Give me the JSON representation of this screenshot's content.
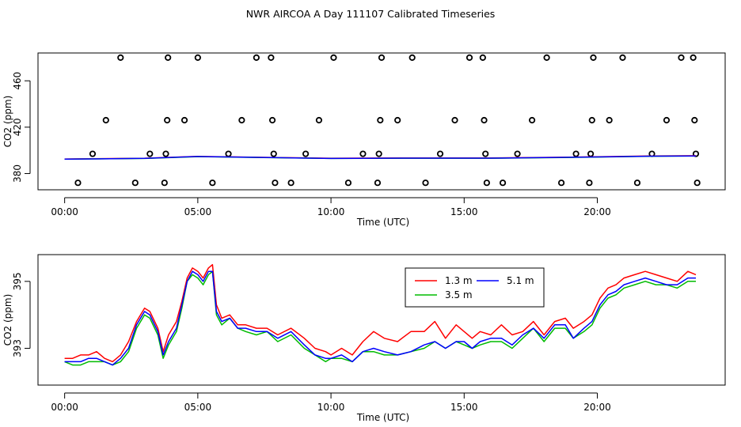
{
  "page_title": "NWR AIRCOA A  Day 111107  Calibrated Timeseries",
  "chart_data": [
    {
      "type": "scatter+line",
      "title": "",
      "xlabel": "Time (UTC)",
      "ylabel": "CO2 (ppm)",
      "xlim": [
        -1.0,
        24.8
      ],
      "ylim": [
        366,
        484
      ],
      "x_ticks": [
        {
          "v": 0,
          "label": "00:00"
        },
        {
          "v": 5,
          "label": "05:00"
        },
        {
          "v": 10,
          "label": "10:00"
        },
        {
          "v": 15,
          "label": "15:00"
        },
        {
          "v": 20,
          "label": "20:00"
        }
      ],
      "y_ticks": [
        {
          "v": 380,
          "label": "380"
        },
        {
          "v": 420,
          "label": "420"
        },
        {
          "v": 460,
          "label": "460"
        }
      ],
      "reference_points": [
        {
          "x": 0.5,
          "y": 372
        },
        {
          "x": 1.05,
          "y": 397
        },
        {
          "x": 1.55,
          "y": 426
        },
        {
          "x": 2.1,
          "y": 480
        },
        {
          "x": 2.65,
          "y": 372
        },
        {
          "x": 3.2,
          "y": 397
        },
        {
          "x": 3.75,
          "y": 372
        },
        {
          "x": 3.8,
          "y": 397
        },
        {
          "x": 3.85,
          "y": 426
        },
        {
          "x": 3.88,
          "y": 480
        },
        {
          "x": 4.5,
          "y": 426
        },
        {
          "x": 5.0,
          "y": 480
        },
        {
          "x": 5.55,
          "y": 372
        },
        {
          "x": 6.15,
          "y": 397
        },
        {
          "x": 6.65,
          "y": 426
        },
        {
          "x": 7.2,
          "y": 480
        },
        {
          "x": 7.75,
          "y": 480
        },
        {
          "x": 7.8,
          "y": 426
        },
        {
          "x": 7.85,
          "y": 397
        },
        {
          "x": 7.9,
          "y": 372
        },
        {
          "x": 8.5,
          "y": 372
        },
        {
          "x": 9.05,
          "y": 397
        },
        {
          "x": 9.55,
          "y": 426
        },
        {
          "x": 10.1,
          "y": 480
        },
        {
          "x": 10.65,
          "y": 372
        },
        {
          "x": 11.2,
          "y": 397
        },
        {
          "x": 11.75,
          "y": 372
        },
        {
          "x": 11.8,
          "y": 397
        },
        {
          "x": 11.85,
          "y": 426
        },
        {
          "x": 11.9,
          "y": 480
        },
        {
          "x": 12.5,
          "y": 426
        },
        {
          "x": 13.05,
          "y": 480
        },
        {
          "x": 13.55,
          "y": 372
        },
        {
          "x": 14.1,
          "y": 397
        },
        {
          "x": 14.65,
          "y": 426
        },
        {
          "x": 15.2,
          "y": 480
        },
        {
          "x": 15.7,
          "y": 480
        },
        {
          "x": 15.75,
          "y": 426
        },
        {
          "x": 15.8,
          "y": 397
        },
        {
          "x": 15.85,
          "y": 372
        },
        {
          "x": 16.45,
          "y": 372
        },
        {
          "x": 17.0,
          "y": 397
        },
        {
          "x": 17.55,
          "y": 426
        },
        {
          "x": 18.1,
          "y": 480
        },
        {
          "x": 18.65,
          "y": 372
        },
        {
          "x": 19.2,
          "y": 397
        },
        {
          "x": 19.7,
          "y": 372
        },
        {
          "x": 19.75,
          "y": 397
        },
        {
          "x": 19.8,
          "y": 426
        },
        {
          "x": 19.85,
          "y": 480
        },
        {
          "x": 20.45,
          "y": 426
        },
        {
          "x": 20.95,
          "y": 480
        },
        {
          "x": 21.5,
          "y": 372
        },
        {
          "x": 22.05,
          "y": 397
        },
        {
          "x": 22.6,
          "y": 426
        },
        {
          "x": 23.15,
          "y": 480
        },
        {
          "x": 23.6,
          "y": 480
        },
        {
          "x": 23.65,
          "y": 426
        },
        {
          "x": 23.7,
          "y": 397
        },
        {
          "x": 23.75,
          "y": 372
        }
      ],
      "series": [
        {
          "name": "1.3 m",
          "color": "#ff0000",
          "x": [
            0,
            3,
            5,
            8,
            10,
            13,
            16,
            19,
            22,
            23.7
          ],
          "y": [
            392.5,
            393.2,
            394.8,
            393.8,
            393.2,
            393.5,
            393.4,
            394.2,
            395.2,
            395.4
          ]
        },
        {
          "name": "3.5 m",
          "color": "#00bb00",
          "x": [
            0,
            3,
            5,
            8,
            10,
            13,
            16,
            19,
            22,
            23.7
          ],
          "y": [
            392.4,
            393.0,
            394.6,
            393.6,
            393.0,
            393.2,
            393.2,
            393.9,
            394.9,
            395.1
          ]
        },
        {
          "name": "5.1 m",
          "color": "#0000ff",
          "x": [
            0,
            3,
            5,
            8,
            10,
            13,
            16,
            19,
            22,
            23.7
          ],
          "y": [
            392.4,
            393.1,
            394.7,
            393.7,
            393.0,
            393.3,
            393.3,
            394.0,
            395.0,
            395.2
          ]
        }
      ]
    },
    {
      "type": "line",
      "title": "",
      "xlabel": "Time (UTC)",
      "ylabel": "CO2 (ppm)",
      "xlim": [
        -1.0,
        24.8
      ],
      "ylim": [
        391.9,
        395.8
      ],
      "x_ticks": [
        {
          "v": 0,
          "label": "00:00"
        },
        {
          "v": 5,
          "label": "05:00"
        },
        {
          "v": 10,
          "label": "10:00"
        },
        {
          "v": 15,
          "label": "15:00"
        },
        {
          "v": 20,
          "label": "20:00"
        }
      ],
      "y_ticks": [
        {
          "v": 393,
          "label": "393"
        },
        {
          "v": 395,
          "label": "395"
        }
      ],
      "legend_position": "top-right",
      "series": [
        {
          "name": "1.3 m",
          "color": "#ff0000",
          "x": [
            0,
            0.3,
            0.6,
            0.9,
            1.2,
            1.5,
            1.8,
            2.1,
            2.4,
            2.7,
            3.0,
            3.2,
            3.5,
            3.7,
            3.9,
            4.2,
            4.4,
            4.6,
            4.8,
            5.0,
            5.2,
            5.4,
            5.55,
            5.7,
            5.9,
            6.2,
            6.5,
            6.8,
            7.2,
            7.6,
            8.0,
            8.5,
            9.0,
            9.4,
            9.8,
            10.0,
            10.4,
            10.8,
            11.2,
            11.6,
            12.0,
            12.5,
            13.0,
            13.5,
            13.9,
            14.3,
            14.7,
            15.0,
            15.3,
            15.6,
            16.0,
            16.4,
            16.8,
            17.2,
            17.6,
            18.0,
            18.4,
            18.8,
            19.1,
            19.5,
            19.8,
            20.1,
            20.4,
            20.7,
            21.0,
            21.4,
            21.8,
            22.2,
            22.6,
            23.0,
            23.4,
            23.7
          ],
          "y": [
            392.7,
            392.7,
            392.8,
            392.8,
            392.9,
            392.7,
            392.6,
            392.8,
            393.2,
            393.8,
            394.2,
            394.1,
            393.6,
            392.9,
            393.4,
            393.8,
            394.4,
            395.1,
            395.4,
            395.3,
            395.1,
            395.4,
            395.5,
            394.3,
            393.9,
            394.0,
            393.7,
            393.7,
            393.6,
            393.6,
            393.4,
            393.6,
            393.3,
            393.0,
            392.9,
            392.8,
            393.0,
            392.8,
            393.2,
            393.5,
            393.3,
            393.2,
            393.5,
            393.5,
            393.8,
            393.3,
            393.7,
            393.5,
            393.3,
            393.5,
            393.4,
            393.7,
            393.4,
            393.5,
            393.8,
            393.4,
            393.8,
            393.9,
            393.6,
            393.8,
            394.0,
            394.5,
            394.8,
            394.9,
            395.1,
            395.2,
            395.3,
            395.2,
            395.1,
            395.0,
            395.3,
            395.2
          ]
        },
        {
          "name": "3.5 m",
          "color": "#00bb00",
          "x": [
            0,
            0.3,
            0.6,
            0.9,
            1.2,
            1.5,
            1.8,
            2.1,
            2.4,
            2.7,
            3.0,
            3.2,
            3.5,
            3.7,
            3.9,
            4.2,
            4.4,
            4.6,
            4.8,
            5.0,
            5.2,
            5.4,
            5.55,
            5.7,
            5.9,
            6.2,
            6.5,
            6.8,
            7.2,
            7.6,
            8.0,
            8.5,
            9.0,
            9.4,
            9.8,
            10.0,
            10.4,
            10.8,
            11.2,
            11.6,
            12.0,
            12.5,
            13.0,
            13.5,
            13.9,
            14.3,
            14.7,
            15.0,
            15.3,
            15.6,
            16.0,
            16.4,
            16.8,
            17.2,
            17.6,
            18.0,
            18.4,
            18.8,
            19.1,
            19.5,
            19.8,
            20.1,
            20.4,
            20.7,
            21.0,
            21.4,
            21.8,
            22.2,
            22.6,
            23.0,
            23.4,
            23.7
          ],
          "y": [
            392.6,
            392.5,
            392.5,
            392.6,
            392.6,
            392.6,
            392.5,
            392.6,
            392.9,
            393.6,
            394.0,
            393.9,
            393.4,
            392.7,
            393.1,
            393.5,
            394.2,
            395.0,
            395.2,
            395.1,
            394.9,
            395.2,
            395.3,
            394.0,
            393.7,
            393.9,
            393.6,
            393.5,
            393.4,
            393.5,
            393.2,
            393.4,
            393.0,
            392.8,
            392.6,
            392.7,
            392.7,
            392.6,
            392.9,
            392.9,
            392.8,
            392.8,
            392.9,
            393.0,
            393.2,
            393.0,
            393.2,
            393.1,
            393.0,
            393.1,
            393.2,
            393.2,
            393.0,
            393.3,
            393.6,
            393.2,
            393.6,
            393.6,
            393.3,
            393.5,
            393.7,
            394.2,
            394.5,
            394.6,
            394.8,
            394.9,
            395.0,
            394.9,
            394.9,
            394.8,
            395.0,
            395.0
          ]
        },
        {
          "name": "5.1 m",
          "color": "#0000ff",
          "x": [
            0,
            0.3,
            0.6,
            0.9,
            1.2,
            1.5,
            1.8,
            2.1,
            2.4,
            2.7,
            3.0,
            3.2,
            3.5,
            3.7,
            3.9,
            4.2,
            4.4,
            4.6,
            4.8,
            5.0,
            5.2,
            5.4,
            5.55,
            5.7,
            5.9,
            6.2,
            6.5,
            6.8,
            7.2,
            7.6,
            8.0,
            8.5,
            9.0,
            9.4,
            9.8,
            10.0,
            10.4,
            10.8,
            11.2,
            11.6,
            12.0,
            12.5,
            13.0,
            13.5,
            13.9,
            14.3,
            14.7,
            15.0,
            15.3,
            15.6,
            16.0,
            16.4,
            16.8,
            17.2,
            17.6,
            18.0,
            18.4,
            18.8,
            19.1,
            19.5,
            19.8,
            20.1,
            20.4,
            20.7,
            21.0,
            21.4,
            21.8,
            22.2,
            22.6,
            23.0,
            23.4,
            23.7
          ],
          "y": [
            392.6,
            392.6,
            392.6,
            392.7,
            392.7,
            392.6,
            392.5,
            392.7,
            393.0,
            393.7,
            394.1,
            394.0,
            393.5,
            392.8,
            393.2,
            393.6,
            394.3,
            395.0,
            395.3,
            395.2,
            395.0,
            395.3,
            395.3,
            394.1,
            393.8,
            393.9,
            393.6,
            393.6,
            393.5,
            393.5,
            393.3,
            393.5,
            393.1,
            392.8,
            392.7,
            392.7,
            392.8,
            392.6,
            392.9,
            393.0,
            392.9,
            392.8,
            392.9,
            393.1,
            393.2,
            393.0,
            393.2,
            393.2,
            393.0,
            393.2,
            393.3,
            393.3,
            393.1,
            393.4,
            393.6,
            393.3,
            393.7,
            393.7,
            393.3,
            393.6,
            393.8,
            394.3,
            394.6,
            394.7,
            394.9,
            395.0,
            395.1,
            395.0,
            394.9,
            394.9,
            395.1,
            395.1
          ]
        }
      ]
    }
  ]
}
